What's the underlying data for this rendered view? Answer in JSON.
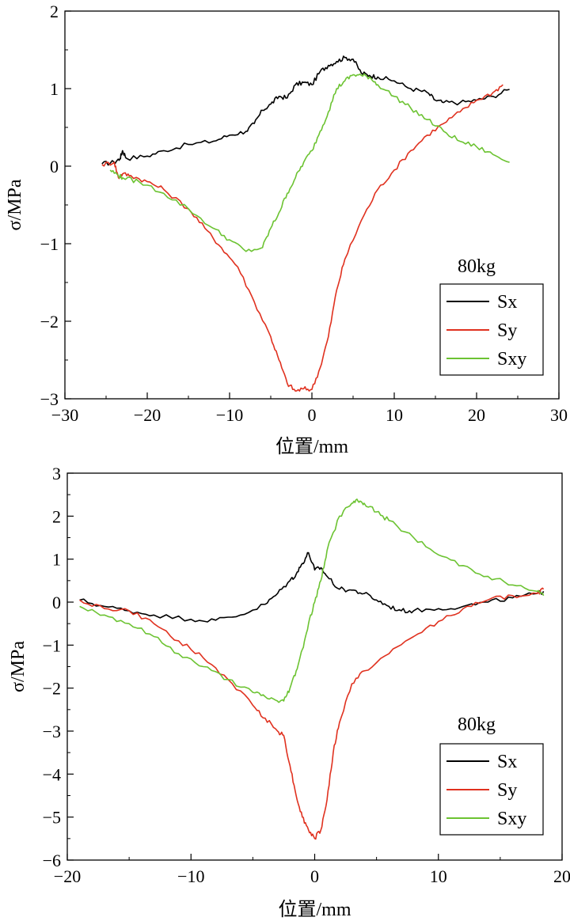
{
  "chart_data": [
    {
      "type": "line",
      "title": "",
      "annotation": "80kg",
      "xlabel": "位置/mm",
      "ylabel": "σ/MPa",
      "xlim": [
        -30,
        30
      ],
      "ylim": [
        -3,
        2
      ],
      "xticks": [
        -30,
        -20,
        -10,
        0,
        10,
        20,
        30
      ],
      "yticks": [
        -3,
        -2,
        -1,
        0,
        1,
        2
      ],
      "xtick_labels": [
        "−30",
        "−20",
        "−10",
        "0",
        "10",
        "20",
        "30"
      ],
      "ytick_labels": [
        "−3",
        "−2",
        "−1",
        "0",
        "1",
        "2"
      ],
      "legend_position": "lower-right",
      "series": [
        {
          "name": "Sx",
          "color": "#000000",
          "x": [
            -25.5,
            -24,
            -23.3,
            -23,
            -22.5,
            -20,
            -18,
            -15,
            -12,
            -10,
            -8,
            -7,
            -6,
            -5,
            -4,
            -3,
            -2,
            -1,
            0,
            1,
            2,
            3,
            4,
            5,
            6,
            7,
            8,
            10,
            12,
            14,
            15,
            16,
            18,
            20,
            22,
            24
          ],
          "y": [
            0.03,
            0.05,
            0.1,
            0.2,
            0.1,
            0.13,
            0.2,
            0.28,
            0.32,
            0.4,
            0.45,
            0.55,
            0.72,
            0.8,
            0.9,
            0.88,
            1.05,
            1.08,
            1.05,
            1.22,
            1.3,
            1.35,
            1.4,
            1.38,
            1.2,
            1.17,
            1.15,
            1.1,
            1.0,
            0.95,
            0.85,
            0.82,
            0.82,
            0.85,
            0.9,
            0.99
          ]
        },
        {
          "name": "Sy",
          "color": "#e0311f",
          "x": [
            -25.5,
            -24,
            -23.5,
            -23,
            -22,
            -20,
            -18,
            -15,
            -13,
            -11,
            -9,
            -7,
            -5,
            -4,
            -3,
            -2,
            -1,
            0,
            1,
            2,
            3,
            4,
            6,
            8,
            10,
            12,
            14,
            16,
            18,
            20,
            22,
            23.2
          ],
          "y": [
            0.02,
            0.05,
            -0.15,
            -0.1,
            -0.12,
            -0.2,
            -0.3,
            -0.55,
            -0.8,
            -1.05,
            -1.3,
            -1.75,
            -2.2,
            -2.5,
            -2.8,
            -2.9,
            -2.87,
            -2.88,
            -2.6,
            -2.2,
            -1.6,
            -1.2,
            -0.7,
            -0.3,
            -0.05,
            0.2,
            0.4,
            0.55,
            0.7,
            0.85,
            0.95,
            1.05
          ]
        },
        {
          "name": "Sxy",
          "color": "#6cc332",
          "x": [
            -24.5,
            -23.5,
            -23,
            -21,
            -18,
            -15,
            -12,
            -10,
            -8,
            -6,
            -5,
            -4,
            -3,
            -2,
            -1,
            0,
            1,
            2,
            3,
            4,
            5,
            6,
            7,
            8,
            10,
            12,
            14,
            16,
            18,
            20,
            22,
            24
          ],
          "y": [
            -0.05,
            -0.12,
            -0.15,
            -0.2,
            -0.35,
            -0.55,
            -0.8,
            -0.95,
            -1.1,
            -1.05,
            -0.8,
            -0.6,
            -0.35,
            -0.15,
            0.05,
            0.2,
            0.45,
            0.7,
            1.0,
            1.1,
            1.18,
            1.17,
            1.15,
            1.05,
            0.9,
            0.75,
            0.6,
            0.45,
            0.32,
            0.25,
            0.15,
            0.05
          ]
        }
      ]
    },
    {
      "type": "line",
      "title": "",
      "annotation": "80kg",
      "xlabel": "位置/mm",
      "ylabel": "σ/MPa",
      "xlim": [
        -20,
        20
      ],
      "ylim": [
        -6,
        3
      ],
      "xticks": [
        -20,
        -10,
        0,
        10,
        20
      ],
      "yticks": [
        -6,
        -5,
        -4,
        -3,
        -2,
        -1,
        0,
        1,
        2,
        3
      ],
      "xtick_labels": [
        "−20",
        "−10",
        "0",
        "10",
        "20"
      ],
      "ytick_labels": [
        "−6",
        "−5",
        "−4",
        "−3",
        "−2",
        "−1",
        "0",
        "1",
        "2",
        "3"
      ],
      "legend_position": "lower-right",
      "series": [
        {
          "name": "Sx",
          "color": "#000000",
          "x": [
            -19,
            -17,
            -15,
            -13,
            -10,
            -8,
            -6,
            -4,
            -3,
            -2,
            -1.5,
            -1,
            -0.5,
            0,
            0.5,
            1,
            2,
            3,
            4,
            5,
            6,
            7,
            8,
            10,
            12,
            14,
            16,
            18,
            18.5
          ],
          "y": [
            0.05,
            -0.1,
            -0.2,
            -0.3,
            -0.4,
            -0.42,
            -0.3,
            -0.05,
            0.2,
            0.5,
            0.65,
            0.9,
            1.15,
            0.75,
            0.8,
            0.6,
            0.3,
            0.28,
            0.2,
            0.05,
            -0.1,
            -0.2,
            -0.2,
            -0.15,
            -0.1,
            0.0,
            0.1,
            0.2,
            0.25
          ]
        },
        {
          "name": "Sy",
          "color": "#e0311f",
          "x": [
            -19,
            -17,
            -15,
            -13,
            -11,
            -9,
            -7,
            -5,
            -4,
            -3,
            -2.5,
            -2,
            -1.5,
            -1,
            -0.5,
            0,
            0.5,
            1,
            1.5,
            2,
            3,
            4,
            6,
            8,
            10,
            12,
            14,
            16,
            18,
            18.5
          ],
          "y": [
            0.05,
            -0.15,
            -0.2,
            -0.5,
            -0.9,
            -1.3,
            -1.8,
            -2.4,
            -2.7,
            -3.0,
            -3.1,
            -3.8,
            -4.5,
            -5.0,
            -5.3,
            -5.5,
            -5.3,
            -4.6,
            -3.5,
            -2.8,
            -1.9,
            -1.6,
            -1.2,
            -0.8,
            -0.45,
            -0.15,
            0.05,
            0.15,
            0.2,
            0.3
          ]
        },
        {
          "name": "Sxy",
          "color": "#6cc332",
          "x": [
            -19,
            -17,
            -15,
            -13,
            -11,
            -9,
            -7,
            -5,
            -4,
            -3,
            -2.5,
            -2,
            -1.5,
            -1,
            -0.5,
            0,
            0.5,
            1,
            2,
            3,
            3.5,
            4,
            5,
            6,
            8,
            10,
            12,
            14,
            16,
            18,
            18.5
          ],
          "y": [
            -0.1,
            -0.3,
            -0.5,
            -0.8,
            -1.2,
            -1.5,
            -1.8,
            -2.1,
            -2.2,
            -2.3,
            -2.3,
            -2.0,
            -1.6,
            -1.1,
            -0.5,
            0.0,
            0.5,
            1.2,
            2.0,
            2.3,
            2.35,
            2.3,
            2.1,
            1.9,
            1.5,
            1.1,
            0.85,
            0.6,
            0.4,
            0.25,
            0.15
          ]
        }
      ]
    }
  ]
}
